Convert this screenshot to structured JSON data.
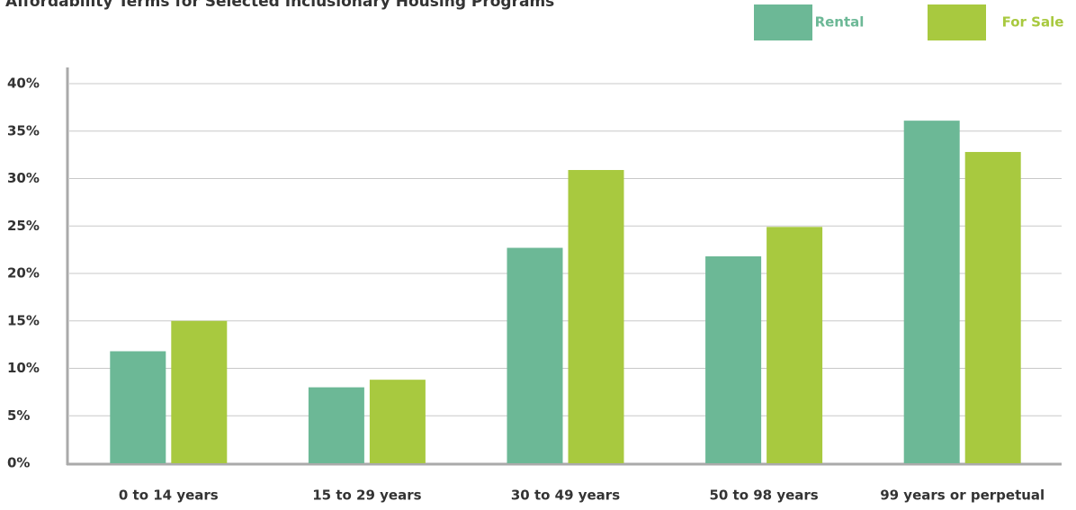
{
  "chart_data": {
    "type": "bar",
    "title": "Affordability Terms for Selected Inclusionary Housing Programs",
    "categories": [
      "0 to 14 years",
      "15 to 29 years",
      "30 to 49 years",
      "50 to 98 years",
      "99 years or perpetual"
    ],
    "series": [
      {
        "name": "Rental",
        "color": "#6cb896",
        "values": [
          11.8,
          8.0,
          22.7,
          21.8,
          36.1
        ]
      },
      {
        "name": "For Sale",
        "color": "#a8c93f",
        "values": [
          15,
          8.8,
          30.9,
          24.9,
          32.8
        ]
      }
    ],
    "ylim": [
      0,
      40
    ],
    "yticks": [
      {
        "value": 0,
        "label": "0%"
      },
      {
        "value": 5,
        "label": "5%"
      },
      {
        "value": 10,
        "label": "10%"
      },
      {
        "value": 15,
        "label": "15%"
      },
      {
        "value": 20,
        "label": "20%"
      },
      {
        "value": 25,
        "label": "25%"
      },
      {
        "value": 30,
        "label": "30%"
      },
      {
        "value": 35,
        "label": "35%"
      },
      {
        "value": 40,
        "label": "40%"
      }
    ],
    "grid": true,
    "legend": "top-right"
  }
}
